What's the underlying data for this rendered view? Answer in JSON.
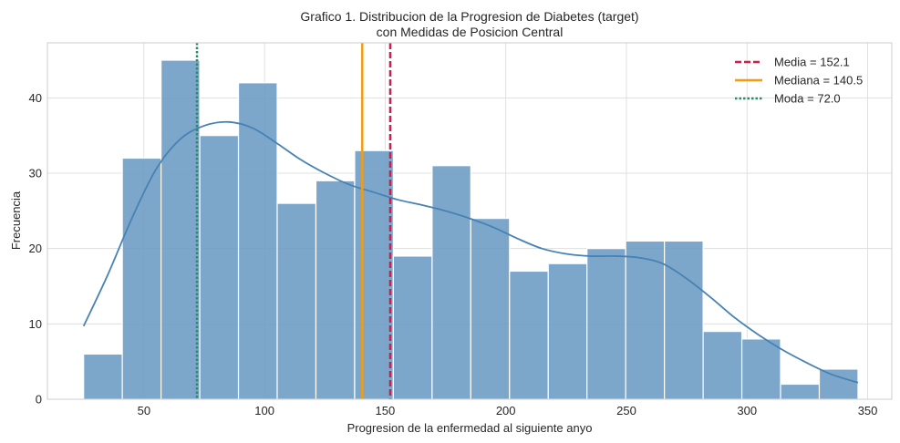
{
  "chart_data": {
    "type": "bar",
    "title_line1": "Grafico 1. Distribucion de la Progresion de Diabetes (target)",
    "title_line2": "con Medidas de Posicion Central",
    "xlabel": "Progresion de la enfermedad al siguiente anyo",
    "ylabel": "Frecuencia",
    "xlim": [
      10,
      360
    ],
    "ylim": [
      0,
      47.3
    ],
    "xticks": [
      50,
      100,
      150,
      200,
      250,
      300,
      350
    ],
    "yticks": [
      0,
      10,
      20,
      30,
      40
    ],
    "grid": true,
    "bin_start": 25,
    "bin_width": 16.05,
    "counts": [
      6,
      32,
      45,
      35,
      42,
      26,
      29,
      33,
      19,
      31,
      24,
      17,
      18,
      20,
      21,
      21,
      9,
      8,
      2,
      4
    ],
    "kde": {
      "x": [
        25,
        35,
        45,
        55,
        65,
        75,
        85,
        95,
        105,
        115,
        125,
        135,
        145,
        155,
        165,
        175,
        185,
        195,
        205,
        215,
        225,
        235,
        245,
        255,
        265,
        275,
        285,
        295,
        305,
        315,
        325,
        335,
        346
      ],
      "y": [
        9.7,
        16.5,
        24.0,
        30.5,
        34.5,
        36.3,
        36.8,
        36.0,
        34.0,
        31.8,
        30.0,
        28.5,
        27.5,
        26.5,
        25.8,
        25.0,
        24.0,
        22.8,
        21.3,
        20.0,
        19.3,
        19.0,
        19.0,
        18.8,
        18.0,
        16.0,
        13.5,
        10.8,
        8.5,
        6.5,
        4.8,
        3.3,
        2.2
      ]
    },
    "reference_lines": [
      {
        "name": "Media = 152.1",
        "x": 152.1,
        "color": "#cc1f4a",
        "style": "dashed"
      },
      {
        "name": "Mediana = 140.5",
        "x": 140.5,
        "color": "#f39c12",
        "style": "solid"
      },
      {
        "name": "Moda = 72.0",
        "x": 72.0,
        "color": "#2a8a6a",
        "style": "dotted"
      }
    ],
    "bar_color": "#6b9bc3",
    "kde_color": "#4682b4",
    "legend_position": "top-right"
  }
}
